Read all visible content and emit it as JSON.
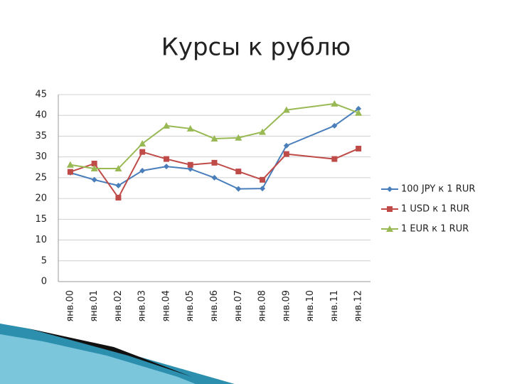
{
  "chart_data": {
    "type": "line",
    "title": "Курсы к рублю",
    "categories": [
      "янв.00",
      "янв.01",
      "янв.02",
      "янв.03",
      "янв.04",
      "янв.05",
      "янв.06",
      "янв.07",
      "янв.08",
      "янв.09",
      "янв.10",
      "янв.11",
      "янв.12"
    ],
    "series": [
      {
        "name": "100 JPY к 1 RUR",
        "color": "#4a7ebb",
        "marker": "diamond",
        "values": [
          26.2,
          24.5,
          23.1,
          26.7,
          27.7,
          27.1,
          25.0,
          22.3,
          22.4,
          32.7,
          null,
          37.5,
          41.6
        ]
      },
      {
        "name": "1 USD к 1 RUR",
        "color": "#be4b48",
        "marker": "square",
        "values": [
          26.4,
          28.4,
          20.2,
          31.2,
          29.5,
          28.1,
          28.6,
          26.5,
          24.5,
          30.7,
          null,
          29.5,
          32.0
        ]
      },
      {
        "name": "1 EUR к 1 RUR",
        "color": "#98b954",
        "marker": "triangle",
        "values": [
          28.1,
          27.2,
          27.2,
          33.2,
          37.5,
          36.8,
          34.4,
          34.6,
          36.0,
          41.3,
          null,
          42.8,
          40.6
        ]
      }
    ],
    "ylim": [
      0,
      45
    ],
    "yticks": [
      0,
      5,
      10,
      15,
      20,
      25,
      30,
      35,
      40,
      45
    ],
    "grid": true,
    "connect_gaps": true,
    "legend": "right"
  }
}
